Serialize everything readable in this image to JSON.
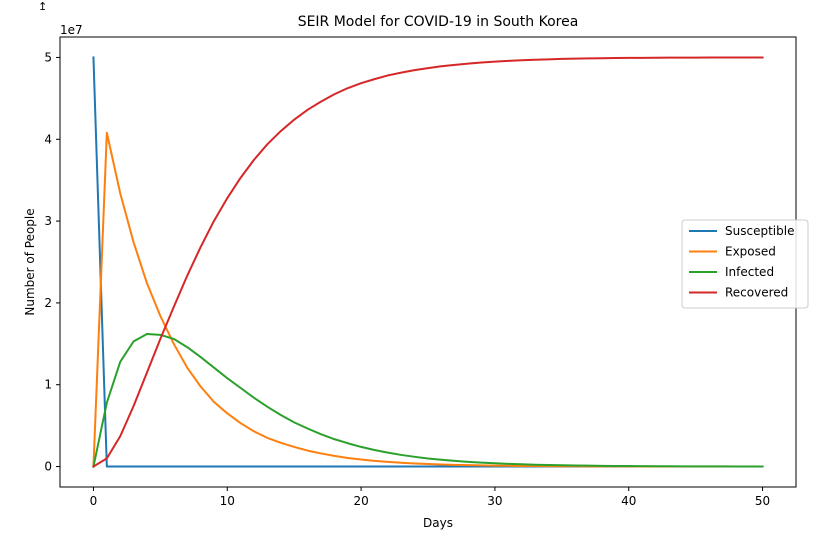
{
  "chart_data": {
    "type": "line",
    "title": "SEIR Model for COVID-19 in South Korea",
    "xlabel": "Days",
    "ylabel": "Number of People",
    "y_offset_label": "1e7",
    "xlim": [
      -2.5,
      52.5
    ],
    "ylim": [
      -2500000,
      52500000
    ],
    "x_ticks": [
      0,
      10,
      20,
      30,
      40,
      50
    ],
    "x_tick_labels": [
      "0",
      "10",
      "20",
      "30",
      "40",
      "50"
    ],
    "y_ticks": [
      0,
      10000000,
      20000000,
      30000000,
      40000000,
      50000000
    ],
    "y_tick_labels": [
      "0",
      "1",
      "2",
      "3",
      "4",
      "5"
    ],
    "grid": false,
    "legend_placement": "center-right",
    "x": [
      0,
      1,
      2,
      3,
      4,
      5,
      6,
      7,
      8,
      9,
      10,
      11,
      12,
      13,
      14,
      15,
      16,
      17,
      18,
      19,
      20,
      21,
      22,
      23,
      24,
      25,
      26,
      27,
      28,
      29,
      30,
      31,
      32,
      33,
      34,
      35,
      36,
      37,
      38,
      39,
      40,
      41,
      42,
      43,
      44,
      45,
      46,
      47,
      48,
      49,
      50
    ],
    "series": [
      {
        "name": "Susceptible",
        "color": "#1f77b4",
        "values": [
          50000000,
          0,
          0,
          0,
          0,
          0,
          0,
          0,
          0,
          0,
          0,
          0,
          0,
          0,
          0,
          0,
          0,
          0,
          0,
          0,
          0,
          0,
          0,
          0,
          0,
          0,
          0,
          0,
          0,
          0,
          0,
          0,
          0,
          0,
          0,
          0,
          0,
          0,
          0,
          0,
          0,
          0,
          0,
          0,
          0,
          0,
          0,
          0,
          0,
          0,
          0
        ]
      },
      {
        "name": "Exposed",
        "color": "#ff7f0e",
        "values": [
          0,
          40800000,
          33400000,
          27400000,
          22400000,
          18400000,
          15000000,
          12100000,
          9800000,
          7900000,
          6500000,
          5300000,
          4300000,
          3500000,
          2900000,
          2400000,
          1950000,
          1600000,
          1300000,
          1050000,
          860000,
          700000,
          570000,
          460000,
          380000,
          310000,
          250000,
          205000,
          167000,
          136000,
          111000,
          91000,
          74000,
          60000,
          49000,
          40000,
          33000,
          27000,
          22000,
          18000,
          14600,
          11900,
          9700,
          7900,
          6500,
          5300,
          4300,
          3500,
          2900,
          2400,
          1900
        ]
      },
      {
        "name": "Infected",
        "color": "#2ca02c",
        "values": [
          0,
          7800000,
          12800000,
          15300000,
          16200000,
          16100000,
          15600000,
          14600000,
          13400000,
          12100000,
          10800000,
          9600000,
          8400000,
          7300000,
          6300000,
          5400000,
          4650000,
          3950000,
          3350000,
          2850000,
          2400000,
          2020000,
          1700000,
          1420000,
          1190000,
          990000,
          830000,
          690000,
          575000,
          478000,
          397000,
          330000,
          274000,
          227000,
          188000,
          156000,
          129000,
          107000,
          88000,
          73000,
          60000,
          50000,
          41000,
          34000,
          28000,
          23000,
          19000,
          16000,
          13000,
          11000,
          9000
        ]
      },
      {
        "name": "Recovered",
        "color": "#d62728",
        "values": [
          0,
          1000000,
          3700000,
          7400000,
          11500000,
          15600000,
          19500000,
          23300000,
          26800000,
          30000000,
          32800000,
          35300000,
          37500000,
          39400000,
          41000000,
          42400000,
          43600000,
          44600000,
          45500000,
          46250000,
          46850000,
          47350000,
          47800000,
          48150000,
          48450000,
          48700000,
          48920000,
          49100000,
          49250000,
          49380000,
          49490000,
          49580000,
          49660000,
          49720000,
          49770000,
          49820000,
          49855000,
          49885000,
          49910000,
          49930000,
          49945000,
          49955000,
          49965000,
          49972000,
          49978000,
          49983000,
          49987000,
          49990000,
          49992000,
          49994000,
          49995000
        ]
      }
    ]
  },
  "page": {
    "corner_glyph": "↥"
  }
}
